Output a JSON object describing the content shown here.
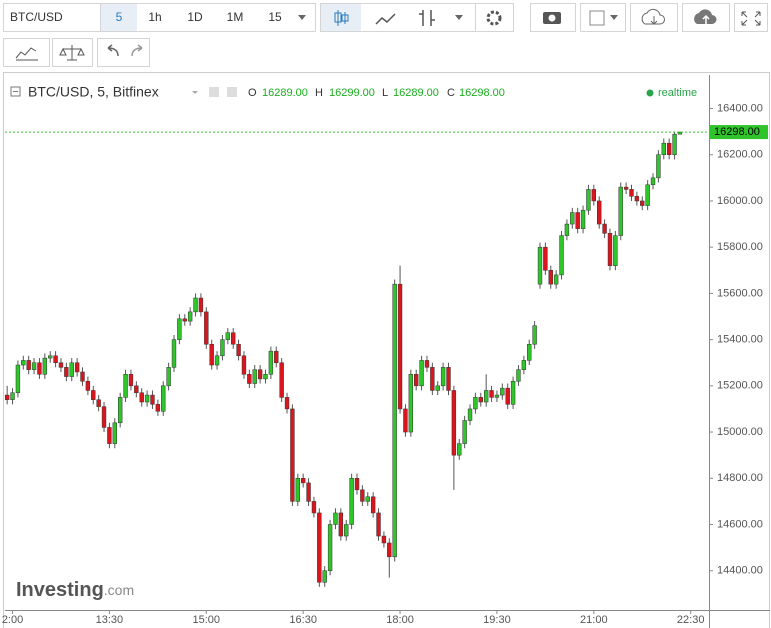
{
  "toolbar": {
    "symbol": "BTC/USD",
    "intervals": [
      "5",
      "1h",
      "1D",
      "1M",
      "15"
    ]
  },
  "chart_data": {
    "type": "candlestick",
    "legend_title": "BTC/USD, 5, Bitfinex",
    "last_letters": [
      "O",
      "H",
      "L",
      "C"
    ],
    "last_value_labels": [
      "16289.00",
      "16299.00",
      "16289.00",
      "16298.00"
    ],
    "status": "realtime",
    "price_label": "16298.00",
    "watermark": [
      "Investing",
      ".com"
    ],
    "up_color": "#2fc42a",
    "down_color": "#d9161d",
    "xlim": [
      713,
      1367
    ],
    "xticks": [
      {
        "value": 720,
        "label": "2:00"
      },
      {
        "value": 810,
        "label": "13:30"
      },
      {
        "value": 900,
        "label": "15:00"
      },
      {
        "value": 990,
        "label": "16:30"
      },
      {
        "value": 1080,
        "label": "18:00"
      },
      {
        "value": 1170,
        "label": "19:30"
      },
      {
        "value": 1260,
        "label": "21:00"
      },
      {
        "value": 1350,
        "label": "22:30"
      }
    ],
    "ylim": [
      14230,
      16545
    ],
    "yticks": [
      {
        "value": 14400,
        "label": "14400.00"
      },
      {
        "value": 14600,
        "label": "14600.00"
      },
      {
        "value": 14800,
        "label": "14800.00"
      },
      {
        "value": 15000,
        "label": "15000.00"
      },
      {
        "value": 15200,
        "label": "15200.00"
      },
      {
        "value": 15400,
        "label": "15400.00"
      },
      {
        "value": 15600,
        "label": "15600.00"
      },
      {
        "value": 15800,
        "label": "15800.00"
      },
      {
        "value": 16000,
        "label": "16000.00"
      },
      {
        "value": 16200,
        "label": "16200.00"
      },
      {
        "value": 16400,
        "label": "16400.00"
      }
    ],
    "x": [
      715,
      720,
      725,
      730,
      735,
      740,
      745,
      750,
      755,
      760,
      765,
      770,
      775,
      780,
      785,
      790,
      795,
      800,
      805,
      810,
      815,
      820,
      825,
      830,
      835,
      840,
      845,
      850,
      855,
      860,
      865,
      870,
      875,
      880,
      885,
      890,
      895,
      900,
      905,
      910,
      915,
      920,
      925,
      930,
      935,
      940,
      945,
      950,
      955,
      960,
      965,
      970,
      975,
      980,
      985,
      990,
      995,
      1000,
      1005,
      1010,
      1015,
      1020,
      1025,
      1030,
      1035,
      1040,
      1045,
      1050,
      1055,
      1060,
      1065,
      1070,
      1075,
      1080,
      1085,
      1090,
      1095,
      1100,
      1105,
      1110,
      1115,
      1120,
      1125,
      1130,
      1135,
      1140,
      1145,
      1150,
      1155,
      1160,
      1165,
      1170,
      1175,
      1180,
      1185,
      1190,
      1195,
      1200,
      1205,
      1210,
      1215,
      1220,
      1225,
      1230,
      1235,
      1240,
      1245,
      1250,
      1255,
      1260,
      1265,
      1270,
      1275,
      1280,
      1285,
      1290,
      1295,
      1300,
      1305,
      1310,
      1315,
      1320,
      1325,
      1330,
      1335,
      1340
    ],
    "ohlc": [
      [
        15160,
        15200,
        15120,
        15140
      ],
      [
        15140,
        15190,
        15120,
        15170
      ],
      [
        15170,
        15310,
        15150,
        15290
      ],
      [
        15290,
        15330,
        15270,
        15310
      ],
      [
        15310,
        15330,
        15250,
        15270
      ],
      [
        15270,
        15320,
        15250,
        15300
      ],
      [
        15300,
        15320,
        15230,
        15250
      ],
      [
        15250,
        15340,
        15230,
        15320
      ],
      [
        15320,
        15350,
        15300,
        15330
      ],
      [
        15330,
        15350,
        15280,
        15300
      ],
      [
        15300,
        15320,
        15260,
        15280
      ],
      [
        15280,
        15300,
        15220,
        15240
      ],
      [
        15240,
        15320,
        15220,
        15300
      ],
      [
        15300,
        15320,
        15240,
        15260
      ],
      [
        15260,
        15280,
        15200,
        15220
      ],
      [
        15220,
        15240,
        15160,
        15180
      ],
      [
        15180,
        15200,
        15120,
        15140
      ],
      [
        15140,
        15160,
        15090,
        15110
      ],
      [
        15110,
        15130,
        15000,
        15020
      ],
      [
        15020,
        15040,
        14930,
        14950
      ],
      [
        14950,
        15060,
        14930,
        15040
      ],
      [
        15040,
        15170,
        15020,
        15150
      ],
      [
        15150,
        15270,
        15130,
        15250
      ],
      [
        15250,
        15270,
        15180,
        15200
      ],
      [
        15200,
        15220,
        15150,
        15170
      ],
      [
        15170,
        15190,
        15110,
        15130
      ],
      [
        15130,
        15180,
        15110,
        15160
      ],
      [
        15160,
        15180,
        15100,
        15120
      ],
      [
        15120,
        15140,
        15070,
        15090
      ],
      [
        15090,
        15220,
        15070,
        15200
      ],
      [
        15200,
        15300,
        15180,
        15280
      ],
      [
        15280,
        15420,
        15260,
        15400
      ],
      [
        15400,
        15510,
        15380,
        15490
      ],
      [
        15490,
        15510,
        15460,
        15480
      ],
      [
        15480,
        15540,
        15460,
        15520
      ],
      [
        15520,
        15600,
        15500,
        15580
      ],
      [
        15580,
        15600,
        15500,
        15520
      ],
      [
        15520,
        15540,
        15360,
        15380
      ],
      [
        15380,
        15400,
        15270,
        15290
      ],
      [
        15290,
        15350,
        15270,
        15330
      ],
      [
        15330,
        15420,
        15310,
        15400
      ],
      [
        15400,
        15450,
        15380,
        15430
      ],
      [
        15430,
        15450,
        15360,
        15380
      ],
      [
        15380,
        15400,
        15310,
        15330
      ],
      [
        15330,
        15350,
        15230,
        15250
      ],
      [
        15250,
        15270,
        15190,
        15210
      ],
      [
        15210,
        15290,
        15190,
        15270
      ],
      [
        15270,
        15290,
        15210,
        15230
      ],
      [
        15230,
        15270,
        15210,
        15250
      ],
      [
        15250,
        15370,
        15230,
        15350
      ],
      [
        15350,
        15370,
        15280,
        15300
      ],
      [
        15300,
        15320,
        15130,
        15150
      ],
      [
        15150,
        15170,
        15080,
        15100
      ],
      [
        15100,
        15120,
        14680,
        14700
      ],
      [
        14700,
        14820,
        14680,
        14800
      ],
      [
        14800,
        14820,
        14760,
        14780
      ],
      [
        14780,
        14800,
        14680,
        14700
      ],
      [
        14700,
        14720,
        14630,
        14650
      ],
      [
        14650,
        14670,
        14330,
        14350
      ],
      [
        14350,
        14420,
        14330,
        14400
      ],
      [
        14400,
        14620,
        14380,
        14600
      ],
      [
        14600,
        14670,
        14580,
        14650
      ],
      [
        14650,
        14670,
        14530,
        14550
      ],
      [
        14550,
        14620,
        14530,
        14600
      ],
      [
        14600,
        14820,
        14580,
        14800
      ],
      [
        14800,
        14820,
        14730,
        14750
      ],
      [
        14750,
        14770,
        14680,
        14700
      ],
      [
        14700,
        14740,
        14680,
        14720
      ],
      [
        14720,
        14740,
        14630,
        14650
      ],
      [
        14650,
        14670,
        14530,
        14550
      ],
      [
        14550,
        14570,
        14500,
        14520
      ],
      [
        14520,
        14540,
        14370,
        14460
      ],
      [
        14460,
        15660,
        14440,
        15640
      ],
      [
        15640,
        15720,
        15080,
        15100
      ],
      [
        15100,
        15120,
        14980,
        15000
      ],
      [
        15000,
        15270,
        14980,
        15250
      ],
      [
        15250,
        15270,
        15180,
        15200
      ],
      [
        15200,
        15330,
        15180,
        15310
      ],
      [
        15310,
        15330,
        15260,
        15280
      ],
      [
        15280,
        15300,
        15160,
        15180
      ],
      [
        15180,
        15220,
        15160,
        15200
      ],
      [
        15200,
        15300,
        15180,
        15280
      ],
      [
        15280,
        15300,
        15160,
        15180
      ],
      [
        15180,
        15200,
        14750,
        14900
      ],
      [
        14900,
        14970,
        14880,
        14950
      ],
      [
        14950,
        15070,
        14930,
        15050
      ],
      [
        15050,
        15120,
        15030,
        15100
      ],
      [
        15100,
        15170,
        15080,
        15150
      ],
      [
        15150,
        15170,
        15110,
        15130
      ],
      [
        15130,
        15250,
        15110,
        15180
      ],
      [
        15180,
        15200,
        15130,
        15150
      ],
      [
        15150,
        15180,
        15130,
        15160
      ],
      [
        15160,
        15210,
        15140,
        15190
      ],
      [
        15190,
        15210,
        15100,
        15120
      ],
      [
        15120,
        15240,
        15100,
        15220
      ],
      [
        15220,
        15290,
        15200,
        15270
      ],
      [
        15270,
        15330,
        15250,
        15310
      ],
      [
        15310,
        15400,
        15290,
        15380
      ],
      [
        15380,
        15480,
        15360,
        15460
      ],
      [
        15640,
        15820,
        15620,
        15800
      ],
      [
        15800,
        15820,
        15680,
        15700
      ],
      [
        15700,
        15720,
        15620,
        15640
      ],
      [
        15640,
        15700,
        15620,
        15680
      ],
      [
        15680,
        15870,
        15660,
        15850
      ],
      [
        15850,
        15920,
        15830,
        15900
      ],
      [
        15900,
        15970,
        15880,
        15950
      ],
      [
        15950,
        15970,
        15860,
        15880
      ],
      [
        15880,
        15980,
        15860,
        15960
      ],
      [
        15960,
        16070,
        15940,
        16050
      ],
      [
        16050,
        16070,
        15980,
        16000
      ],
      [
        16000,
        16020,
        15880,
        15900
      ],
      [
        15900,
        15920,
        15840,
        15860
      ],
      [
        15860,
        15880,
        15700,
        15720
      ],
      [
        15720,
        15870,
        15700,
        15850
      ],
      [
        15850,
        16080,
        15830,
        16060
      ],
      [
        16060,
        16080,
        16030,
        16050
      ],
      [
        16050,
        16070,
        16000,
        16020
      ],
      [
        16020,
        16040,
        15980,
        16000
      ],
      [
        16000,
        16020,
        15960,
        15980
      ],
      [
        15980,
        16090,
        15960,
        16070
      ],
      [
        16070,
        16120,
        16050,
        16100
      ],
      [
        16100,
        16220,
        16080,
        16200
      ],
      [
        16200,
        16270,
        16180,
        16250
      ],
      [
        16250,
        16270,
        16180,
        16200
      ],
      [
        16200,
        16300,
        16180,
        16289
      ],
      [
        16289,
        16299,
        16289,
        16298
      ]
    ]
  }
}
